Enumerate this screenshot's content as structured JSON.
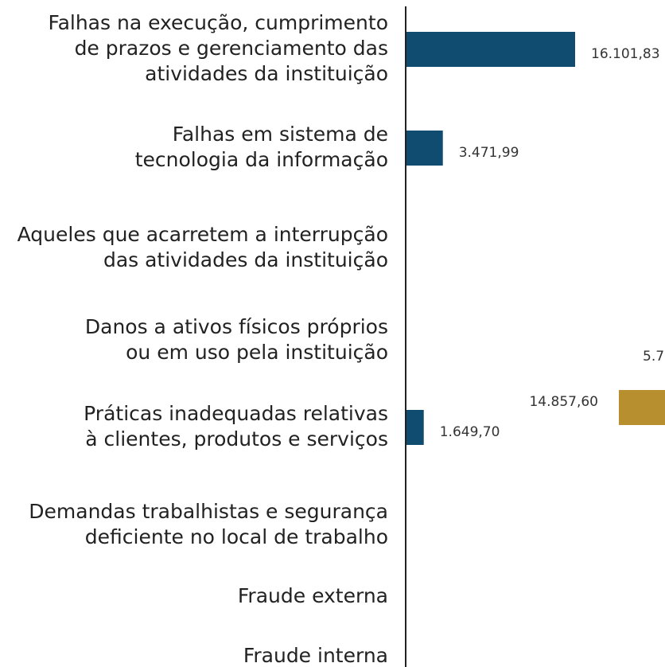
{
  "chart_data": {
    "type": "bar",
    "categories": [
      [
        "Falhas na execução, cumprimento",
        "de prazos e gerenciamento das",
        "atividades da instituição"
      ],
      [
        "Falhas em sistema de",
        "tecnologia da informação"
      ],
      [
        "Aqueles que acarretem a interrupção",
        "das atividades da instituição"
      ],
      [
        "Danos a ativos físicos próprios",
        "ou em uso pela instituição"
      ],
      [
        "Práticas inadequadas relativas",
        "à clientes, produtos e serviços"
      ],
      [
        "Demandas trabalhistas e segurança",
        "deficiente no local de trabalho"
      ],
      [
        "Fraude externa"
      ],
      [
        "Fraude interna"
      ]
    ],
    "series": [
      {
        "color": "#0f4c70",
        "values": [
          16101.83,
          3471.99,
          null,
          null,
          1649.7,
          null,
          null,
          null
        ],
        "value_labels": [
          "16.101,83",
          "3.471,99",
          null,
          null,
          "1.649,70",
          null,
          null,
          null
        ]
      },
      {
        "color": "#b88f2e",
        "values": [
          null,
          null,
          null,
          null,
          14857.6,
          null,
          null,
          null
        ],
        "value_labels": [
          null,
          null,
          null,
          null,
          "14.857,60",
          null,
          null,
          null
        ]
      }
    ],
    "annotations": [
      "5.7"
    ]
  }
}
